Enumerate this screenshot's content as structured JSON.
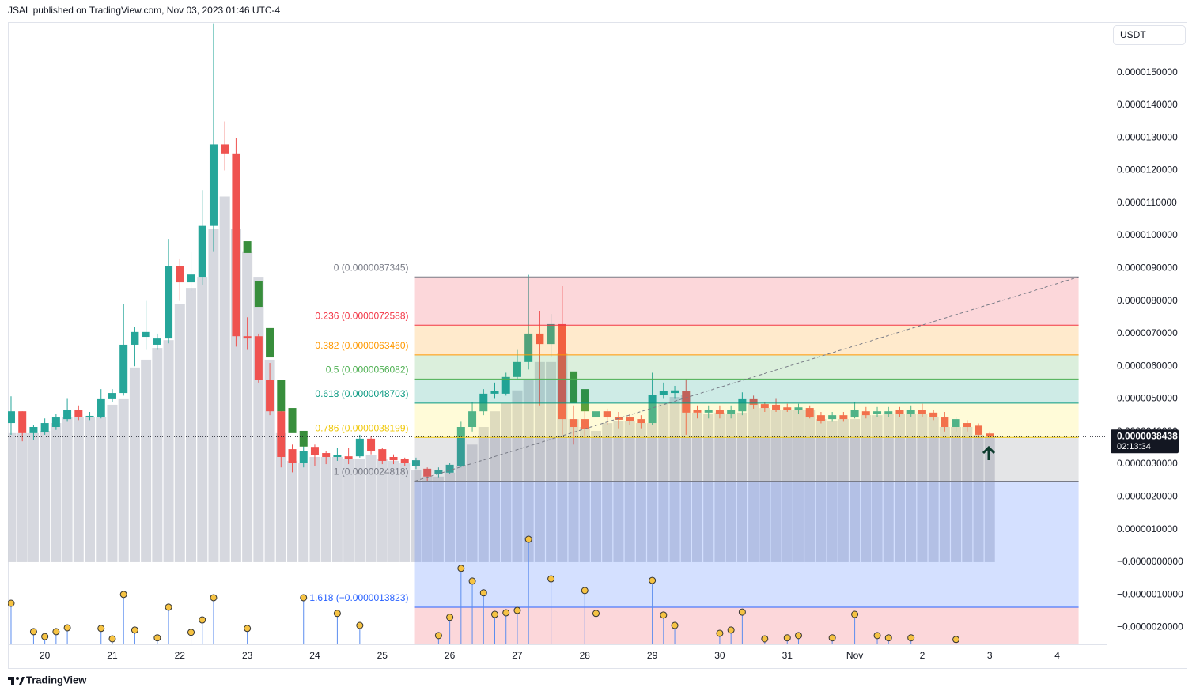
{
  "header": {
    "title": "JSAL published on TradingView.com, Nov 03, 2023 01:46 UTC-4"
  },
  "toolbar": {
    "currency": "USDT"
  },
  "footer": {
    "brand": "TradingView"
  },
  "chart_data": {
    "type": "candlestick",
    "up_color": "#26a69a",
    "down_color": "#ef5350",
    "x": [
      0,
      1,
      2,
      3,
      4,
      5,
      6,
      7,
      8,
      9,
      10,
      11,
      12,
      13,
      14,
      15,
      16,
      17,
      18,
      19,
      20,
      21,
      22,
      23,
      24,
      25,
      26,
      27,
      28,
      29,
      30,
      31,
      32,
      33,
      34,
      35,
      36,
      37,
      38,
      39,
      40,
      41,
      42,
      43,
      44,
      45,
      46,
      47,
      48,
      49,
      50,
      51,
      52,
      53,
      54,
      55,
      56,
      57,
      58,
      59,
      60,
      61,
      62,
      63,
      64,
      65,
      66,
      67,
      68,
      69,
      70,
      71,
      72,
      73,
      74,
      75,
      76,
      77,
      78,
      79,
      80,
      81,
      82,
      83,
      84,
      85,
      86,
      87
    ],
    "open": [
      4.26e-06,
      4.62e-06,
      3.95e-06,
      3.97e-06,
      4.14e-06,
      4.38e-06,
      4.67e-06,
      4.45e-06,
      4.43e-06,
      4.99e-06,
      5.18e-06,
      6.66e-06,
      6.9e-06,
      6.66e-06,
      6.85e-06,
      9.08e-06,
      8.57e-06,
      8.74e-06,
      1.03e-05,
      1.28e-05,
      1.25e-05,
      6.92e-06,
      6.92e-06,
      5.59e-06,
      4.62e-06,
      3.46e-06,
      3.05e-06,
      3.53e-06,
      3.34e-06,
      3.22e-06,
      3.24e-06,
      3.24e-06,
      3.78e-06,
      3.46e-06,
      3.22e-06,
      3.17e-06,
      2.93e-06,
      2.86e-06,
      2.69e-06,
      2.74e-06,
      2.93e-06,
      4.14e-06,
      4.62e-06,
      5.16e-06,
      5.16e-06,
      5.67e-06,
      6.13e-06,
      7e-06,
      6.68e-06,
      7.29e-06,
      4.38e-06,
      4.38e-06,
      4.43e-06,
      4.62e-06,
      4.45e-06,
      4.43e-06,
      4.38e-06,
      4.26e-06,
      5.11e-06,
      5.18e-06,
      5.23e-06,
      4.67e-06,
      4.58e-06,
      4.65e-06,
      4.53e-06,
      4.62e-06,
      4.99e-06,
      4.84e-06,
      4.82e-06,
      4.74e-06,
      4.67e-06,
      4.72e-06,
      4.5e-06,
      4.38e-06,
      4.5e-06,
      4.43e-06,
      4.62e-06,
      4.53e-06,
      4.55e-06,
      4.65e-06,
      4.53e-06,
      4.67e-06,
      4.58e-06,
      4.43e-06,
      4.14e-06,
      4.26e-06,
      4.18e-06,
      3.94e-06
    ],
    "high": [
      5.08e-06,
      4.62e-06,
      4.2e-06,
      4.4e-06,
      4.55e-06,
      5e-06,
      4.8e-06,
      4.6e-06,
      5.3e-06,
      5.3e-06,
      7.9e-06,
      7.2e-06,
      8e-06,
      7e-06,
      9.9e-06,
      9.3e-06,
      9.5e-06,
      1.14e-05,
      1.65e-05,
      1.35e-05,
      1.3e-05,
      7.5e-06,
      7e-06,
      6.1e-06,
      4.7e-06,
      3.6e-06,
      3.6e-06,
      3.6e-06,
      3.4e-06,
      3.5e-06,
      3.5e-06,
      3.9e-06,
      3.85e-06,
      3.5e-06,
      3.3e-06,
      3.2e-06,
      3.2e-06,
      2.9e-06,
      2.9e-06,
      3.05e-06,
      4.3e-06,
      4.9e-06,
      5.3e-06,
      5.5e-06,
      5.8e-06,
      6.5e-06,
      8.8e-06,
      7.7e-06,
      7.6e-06,
      8.45e-06,
      4.8e-06,
      4.7e-06,
      4.8e-06,
      4.7e-06,
      4.6e-06,
      4.55e-06,
      4.5e-06,
      5.8e-06,
      5.5e-06,
      5.4e-06,
      5.6e-06,
      4.8e-06,
      4.8e-06,
      4.8e-06,
      4.8e-06,
      5.2e-06,
      5.1e-06,
      4.9e-06,
      5e-06,
      4.85e-06,
      4.85e-06,
      4.8e-06,
      4.6e-06,
      4.6e-06,
      4.6e-06,
      4.9e-06,
      4.75e-06,
      4.75e-06,
      4.75e-06,
      4.75e-06,
      4.8e-06,
      4.85e-06,
      4.65e-06,
      4.6e-06,
      4.45e-06,
      4.35e-06,
      4.25e-06,
      4e-06
    ],
    "low": [
      3.9e-06,
      3.7e-06,
      3.75e-06,
      3.9e-06,
      4.05e-06,
      4.3e-06,
      4.35e-06,
      4.35e-06,
      4.4e-06,
      4.9e-06,
      5.1e-06,
      6e-06,
      6.5e-06,
      6.5e-06,
      6.7e-06,
      8e-06,
      8.3e-06,
      8.5e-06,
      9.5e-06,
      1.2e-05,
      6.6e-06,
      6.5e-06,
      5.5e-06,
      4.5e-06,
      2.9e-06,
      2.75e-06,
      2.9e-06,
      2.95e-06,
      3e-06,
      3.1e-06,
      3e-06,
      3.2e-06,
      3.3e-06,
      3e-06,
      3e-06,
      2.95e-06,
      2.85e-06,
      2.48e-06,
      2.6e-06,
      2.7e-06,
      2.9e-06,
      4e-06,
      4.5e-06,
      5e-06,
      5.1e-06,
      5.6e-06,
      5.9e-06,
      4.8e-06,
      6.3e-06,
      3.9e-06,
      3.6e-06,
      3.8e-06,
      4.2e-06,
      4.2e-06,
      4.1e-06,
      4.2e-06,
      4.1e-06,
      4.2e-06,
      5e-06,
      5e-06,
      3.9e-06,
      4.4e-06,
      4.4e-06,
      4.4e-06,
      4.4e-06,
      4.5e-06,
      4.7e-06,
      4.6e-06,
      4.6e-06,
      4.6e-06,
      4.55e-06,
      4.4e-06,
      4.25e-06,
      4.3e-06,
      4.3e-06,
      4.4e-06,
      4.4e-06,
      4.45e-06,
      4.45e-06,
      4.45e-06,
      4.45e-06,
      4.45e-06,
      4.35e-06,
      4e-06,
      4e-06,
      4e-06,
      3.8e-06,
      3.8e-06
    ],
    "close": [
      4.62e-06,
      3.95e-06,
      4.14e-06,
      4.26e-06,
      4.43e-06,
      4.67e-06,
      4.45e-06,
      4.48e-06,
      4.99e-06,
      5.18e-06,
      6.66e-06,
      7.05e-06,
      7.05e-06,
      6.85e-06,
      9.08e-06,
      8.57e-06,
      8.81e-06,
      1.03e-05,
      1.28e-05,
      1.25e-05,
      6.92e-06,
      6.85e-06,
      5.59e-06,
      4.62e-06,
      3.22e-06,
      3.05e-06,
      3.41e-06,
      3.29e-06,
      3.22e-06,
      3.29e-06,
      3.17e-06,
      3.78e-06,
      3.41e-06,
      3.1e-06,
      3.12e-06,
      3.05e-06,
      3.12e-06,
      2.62e-06,
      2.81e-06,
      2.98e-06,
      4.14e-06,
      4.62e-06,
      5.16e-06,
      5.23e-06,
      5.67e-06,
      6.13e-06,
      7e-06,
      6.68e-06,
      7.29e-06,
      4.38e-06,
      4.14e-06,
      4.09e-06,
      4.62e-06,
      4.43e-06,
      4.36e-06,
      4.33e-06,
      4.26e-06,
      5.11e-06,
      5.23e-06,
      5.26e-06,
      4.58e-06,
      4.58e-06,
      4.67e-06,
      4.53e-06,
      4.67e-06,
      4.99e-06,
      4.82e-06,
      4.72e-06,
      4.67e-06,
      4.67e-06,
      4.74e-06,
      4.43e-06,
      4.33e-06,
      4.5e-06,
      4.38e-06,
      4.67e-06,
      4.5e-06,
      4.62e-06,
      4.62e-06,
      4.53e-06,
      4.67e-06,
      4.53e-06,
      4.45e-06,
      4.14e-06,
      4.38e-06,
      4.14e-06,
      3.9e-06,
      3.84e-06
    ],
    "overlay": {
      "color": "#388e3c",
      "x": [
        21,
        22,
        23,
        24,
        25,
        26,
        50,
        51
      ],
      "open": [
        9.47e-06,
        7.82e-06,
        6.27e-06,
        4.62e-06,
        3.95e-06,
        3.54e-06,
        4.87e-06,
        4.62e-06
      ],
      "close": [
        9.83e-06,
        8.62e-06,
        7.17e-06,
        5.59e-06,
        4.72e-06,
        4.02e-06,
        5.84e-06,
        5.3e-06
      ]
    },
    "shade": {
      "color": "#d1d4dc",
      "values": [
        3.95e-06,
        3.95e-06,
        3.95e-06,
        4.02e-06,
        4.26e-06,
        4.43e-06,
        4.43e-06,
        4.43e-06,
        4.43e-06,
        4.82e-06,
        4.99e-06,
        5.96e-06,
        6.2e-06,
        6.56e-06,
        6.8e-06,
        7.9e-06,
        8.4e-06,
        8.74e-06,
        1.02e-05,
        1.12e-05,
        1.02e-05,
        9.5e-06,
        8.74e-06,
        6.2e-06,
        3.95e-06,
        3.1e-06,
        3.05e-06,
        3.22e-06,
        3.22e-06,
        3.22e-06,
        3.17e-06,
        3.17e-06,
        3.29e-06,
        3.17e-06,
        3.1e-06,
        3.05e-06,
        2.81e-06,
        2.62e-06,
        2.62e-06,
        2.74e-06,
        2.93e-06,
        3.6e-06,
        4.14e-06,
        4.62e-06,
        4.87e-06,
        5.26e-06,
        5.59e-06,
        6.13e-06,
        6.13e-06,
        6.4e-06,
        4.38e-06,
        4.14e-06,
        4.02e-06,
        4.26e-06,
        4.33e-06,
        4.33e-06,
        4.26e-06,
        4.26e-06,
        4.87e-06,
        5.06e-06,
        5.11e-06,
        4.58e-06,
        4.55e-06,
        4.58e-06,
        4.53e-06,
        4.58e-06,
        4.87e-06,
        4.72e-06,
        4.67e-06,
        4.67e-06,
        4.67e-06,
        4.67e-06,
        4.38e-06,
        4.33e-06,
        4.38e-06,
        4.38e-06,
        4.5e-06,
        4.5e-06,
        4.55e-06,
        4.53e-06,
        4.53e-06,
        4.53e-06,
        4.45e-06,
        4.14e-06,
        4.14e-06,
        4.14e-06,
        3.9e-06,
        3.84e-06
      ]
    },
    "indicator": {
      "color": "#f6c343",
      "stem_color": "#5b8def",
      "x": [
        0,
        2,
        3,
        4,
        5,
        8,
        9,
        10,
        11,
        13,
        14,
        16,
        17,
        18,
        21,
        26,
        29,
        31,
        38,
        39,
        40,
        41,
        42,
        43,
        44,
        45,
        46,
        48,
        51,
        52,
        57,
        58,
        59,
        63,
        64,
        65,
        67,
        69,
        70,
        73,
        75,
        77,
        78,
        80,
        84
      ],
      "values": [
        -1.26e-06,
        -2.13e-06,
        -2.28e-06,
        -2.13e-06,
        -2.01e-06,
        -2.03e-06,
        -2.35e-06,
        -9.9e-07,
        -2.08e-06,
        -2.32e-06,
        -1.38e-06,
        -2.15e-06,
        -1.77e-06,
        -1.09e-06,
        -2.03e-06,
        -1.09e-06,
        -1.57e-06,
        -1.94e-06,
        -2.25e-06,
        -1.69e-06,
        -1.9e-07,
        -5.8e-07,
        -9.4e-07,
        -1.6e-06,
        -1.55e-06,
        -1.48e-06,
        7e-07,
        -5.1e-07,
        -8.7e-07,
        -1.57e-06,
        -5.6e-07,
        -1.62e-06,
        -1.94e-06,
        -2.18e-06,
        -2.08e-06,
        -1.53e-06,
        -2.35e-06,
        -2.32e-06,
        -2.25e-06,
        -2.32e-06,
        -1.6e-06,
        -2.25e-06,
        -2.32e-06,
        -2.32e-06,
        -2.37e-06
      ]
    },
    "fib": {
      "x_range": [
        35.9,
        94.9
      ],
      "trend_color": "#787b86",
      "levels": [
        {
          "label": "0 (0.0000087345)",
          "value": 8.7345e-06,
          "color": "#787b86",
          "fill": "rgba(242,54,69,0.2)"
        },
        {
          "label": "0.236 (0.0000072588)",
          "value": 7.2588e-06,
          "color": "#f23645",
          "fill": "rgba(255,152,0,0.2)"
        },
        {
          "label": "0.382 (0.0000063460)",
          "value": 6.346e-06,
          "color": "#ff9800",
          "fill": "rgba(76,175,80,0.2)"
        },
        {
          "label": "0.5 (0.0000056082)",
          "value": 5.6082e-06,
          "color": "#4caf50",
          "fill": "rgba(8,153,129,0.2)"
        },
        {
          "label": "0.618 (0.0000048703)",
          "value": 4.8703e-06,
          "color": "#089981",
          "fill": "rgba(255,235,59,0.2)"
        },
        {
          "label": "0.786 (0.0000038199)",
          "value": 3.8199e-06,
          "color": "#f0c808",
          "fill": "rgba(120,123,134,0.2)"
        },
        {
          "label": "1 (0.0000024818)",
          "value": 2.4818e-06,
          "color": "#787b86",
          "fill": "rgba(41,98,255,0.2)"
        },
        {
          "label": "1.618 (−0.0000013823)",
          "value": -1.3823e-06,
          "color": "#2962ff",
          "fill": "rgba(242,54,69,0.2)"
        }
      ]
    },
    "last_price": {
      "value": 3.8438e-06,
      "label": "0.0000038438",
      "countdown": "02:13:34"
    },
    "xlim": [
      -0.28,
      97.46
    ],
    "ylim": [
      -2.52e-06,
      1.654e-05
    ],
    "grid": false,
    "xticks": [
      {
        "value": 3,
        "label": "20"
      },
      {
        "value": 9,
        "label": "21"
      },
      {
        "value": 15,
        "label": "22"
      },
      {
        "value": 21,
        "label": "23"
      },
      {
        "value": 27,
        "label": "24"
      },
      {
        "value": 33,
        "label": "25"
      },
      {
        "value": 39,
        "label": "26"
      },
      {
        "value": 45,
        "label": "27"
      },
      {
        "value": 51,
        "label": "28"
      },
      {
        "value": 57,
        "label": "29"
      },
      {
        "value": 63,
        "label": "30"
      },
      {
        "value": 69,
        "label": "31"
      },
      {
        "value": 75,
        "label": "Nov"
      },
      {
        "value": 81,
        "label": "2"
      },
      {
        "value": 87,
        "label": "3"
      },
      {
        "value": 93,
        "label": "4"
      }
    ],
    "yticks": [
      {
        "value": 1.5e-05,
        "label": "0.0000150000"
      },
      {
        "value": 1.4e-05,
        "label": "0.0000140000"
      },
      {
        "value": 1.3e-05,
        "label": "0.0000130000"
      },
      {
        "value": 1.2e-05,
        "label": "0.0000120000"
      },
      {
        "value": 1.1e-05,
        "label": "0.0000110000"
      },
      {
        "value": 1e-05,
        "label": "0.0000100000"
      },
      {
        "value": 9e-06,
        "label": "0.0000090000"
      },
      {
        "value": 8e-06,
        "label": "0.0000080000"
      },
      {
        "value": 7e-06,
        "label": "0.0000070000"
      },
      {
        "value": 6e-06,
        "label": "0.0000060000"
      },
      {
        "value": 5e-06,
        "label": "0.0000050000"
      },
      {
        "value": 4e-06,
        "label": "0.0000040000"
      },
      {
        "value": 3e-06,
        "label": "0.0000030000"
      },
      {
        "value": 2e-06,
        "label": "0.0000020000"
      },
      {
        "value": 1e-06,
        "label": "0.0000010000"
      },
      {
        "value": 0,
        "label": "−0.0000000000"
      },
      {
        "value": -1e-06,
        "label": "−0.0000010000"
      },
      {
        "value": -2e-06,
        "label": "−0.0000020000"
      }
    ]
  }
}
